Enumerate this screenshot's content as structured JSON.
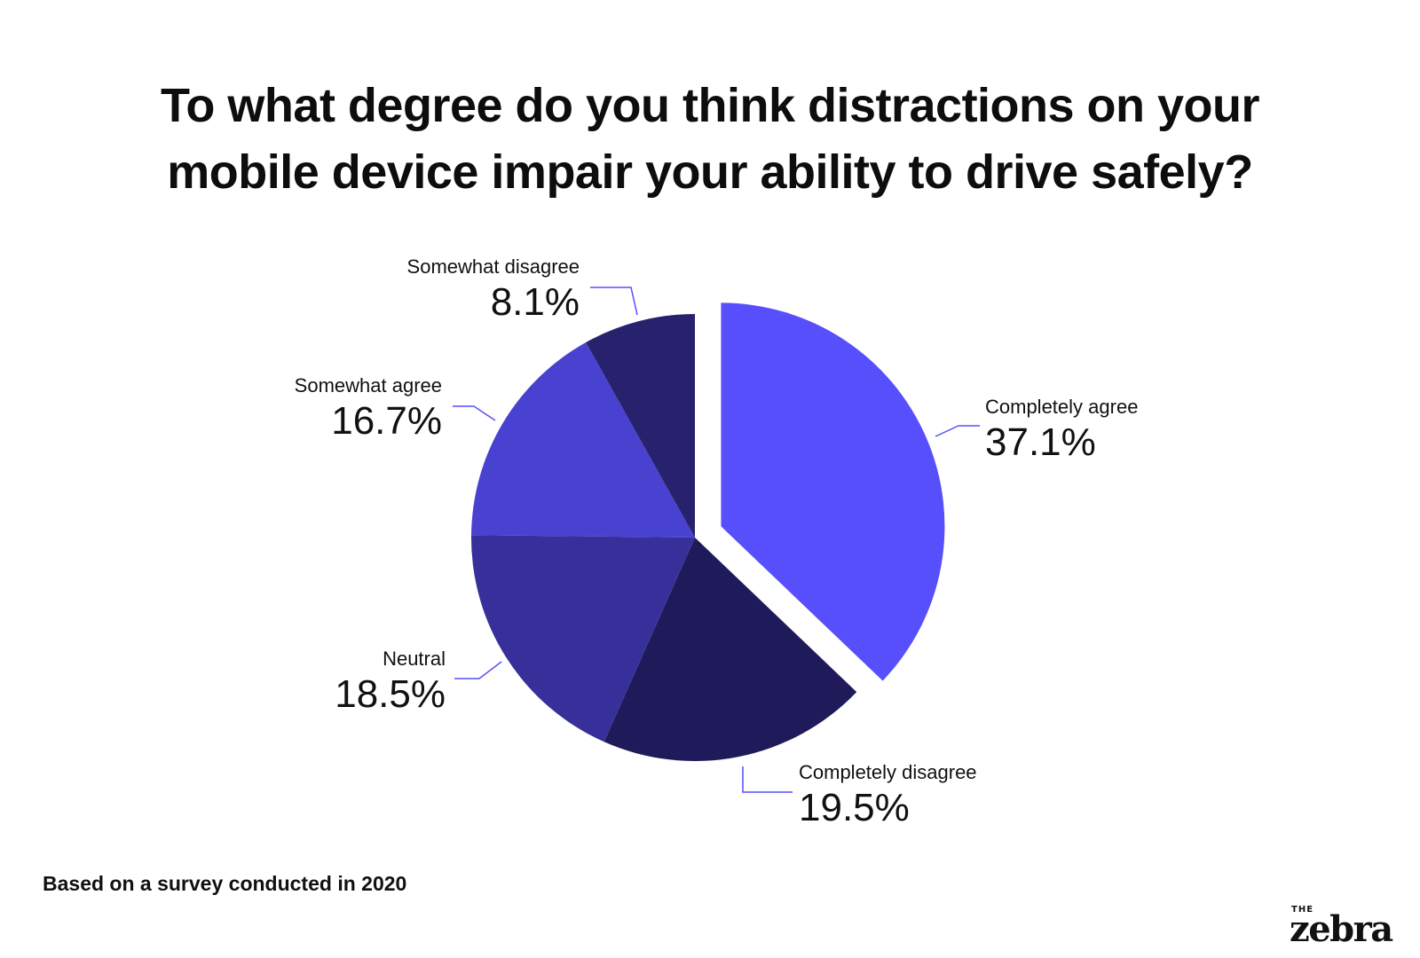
{
  "header": {
    "title_line1": "To what degree do you think distractions on your",
    "title_line2": "mobile device impair your ability to drive safely?"
  },
  "footer": {
    "note": "Based on a survey conducted in 2020",
    "logo_small": "THE",
    "logo_word": "zebra"
  },
  "chart_data": {
    "type": "pie",
    "title": "To what degree do you think distractions on your mobile device impair your ability to drive safely?",
    "legend": "none",
    "slices": [
      {
        "label": "Completely agree",
        "value": 37.1,
        "display": "37.1%",
        "color": "#574ffb",
        "exploded": true
      },
      {
        "label": "Completely disagree",
        "value": 19.5,
        "display": "19.5%",
        "color": "#1f1b5a",
        "exploded": false
      },
      {
        "label": "Neutral",
        "value": 18.5,
        "display": "18.5%",
        "color": "#37309a",
        "exploded": false
      },
      {
        "label": "Somewhat agree",
        "value": 16.7,
        "display": "16.7%",
        "color": "#4941d0",
        "exploded": false
      },
      {
        "label": "Somewhat disagree",
        "value": 8.1,
        "display": "8.1%",
        "color": "#28226e",
        "exploded": false
      }
    ],
    "leader_color": "#574ffb"
  }
}
